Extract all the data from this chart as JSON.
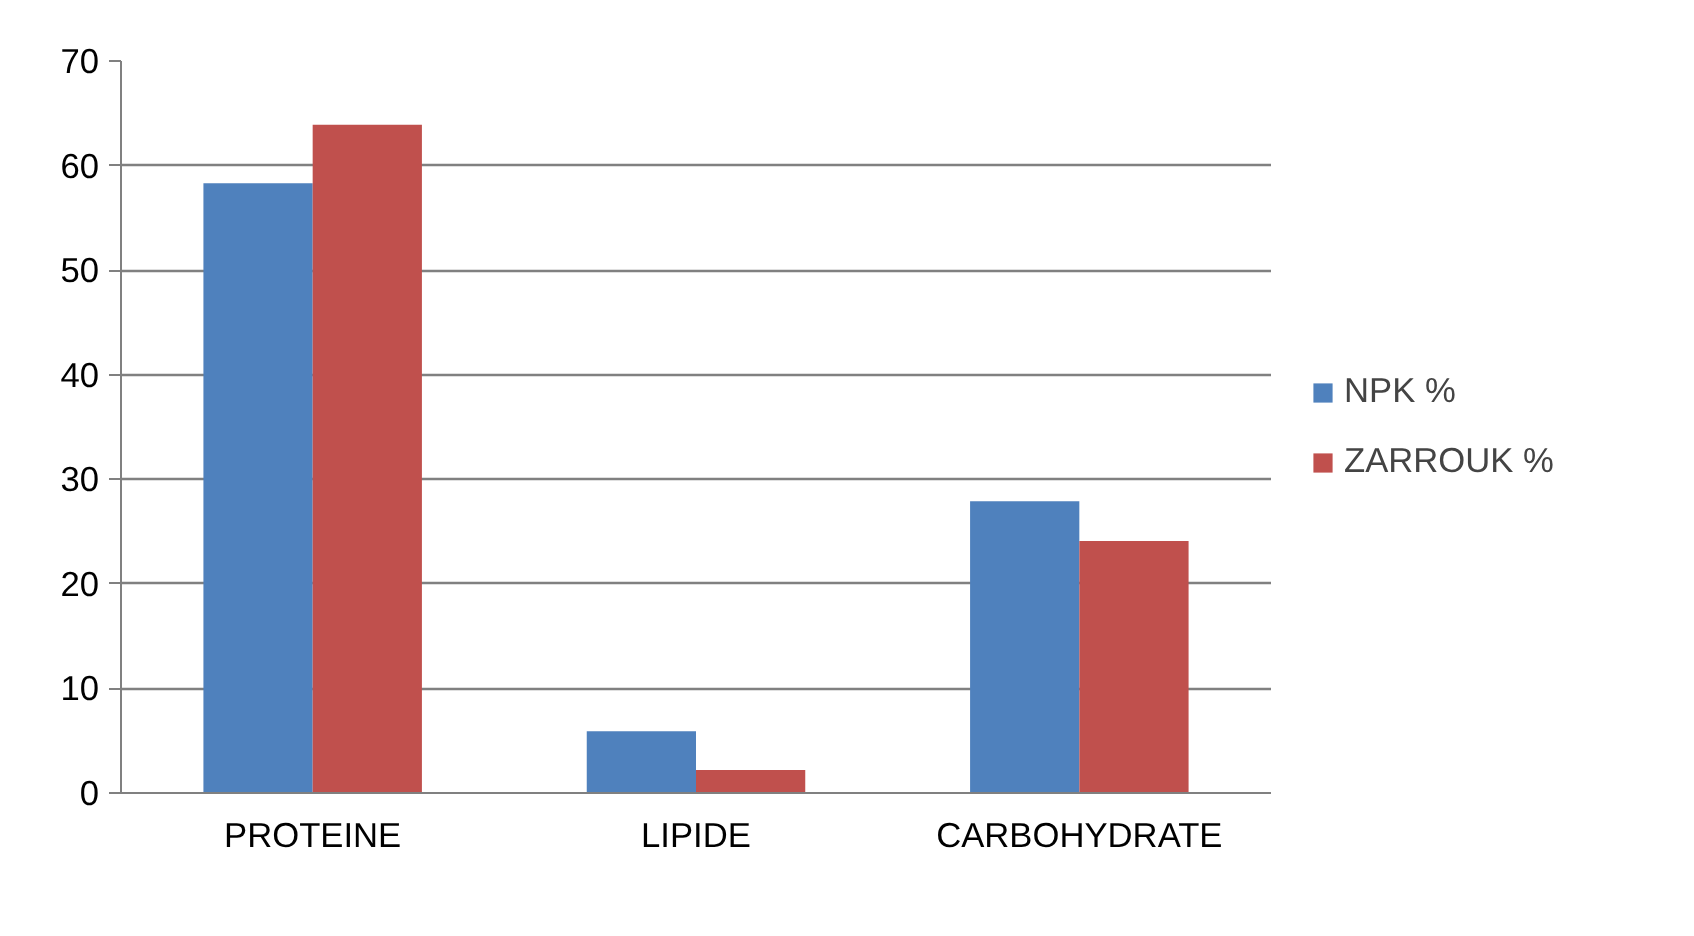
{
  "chart_data": {
    "type": "bar",
    "categories": [
      "PROTEINE",
      "LIPIDE",
      "CARBOHYDRATE"
    ],
    "series": [
      {
        "name": "NPK %",
        "color": "#4f81bd",
        "values": [
          58.3,
          5.9,
          27.9
        ]
      },
      {
        "name": "ZARROUK %",
        "color": "#c0504d",
        "values": [
          63.9,
          2.2,
          24.1
        ]
      }
    ],
    "ylim": [
      0,
      70
    ],
    "yticks": [
      0,
      10,
      20,
      30,
      40,
      50,
      60,
      70
    ],
    "grid": "y",
    "legend": "right"
  }
}
